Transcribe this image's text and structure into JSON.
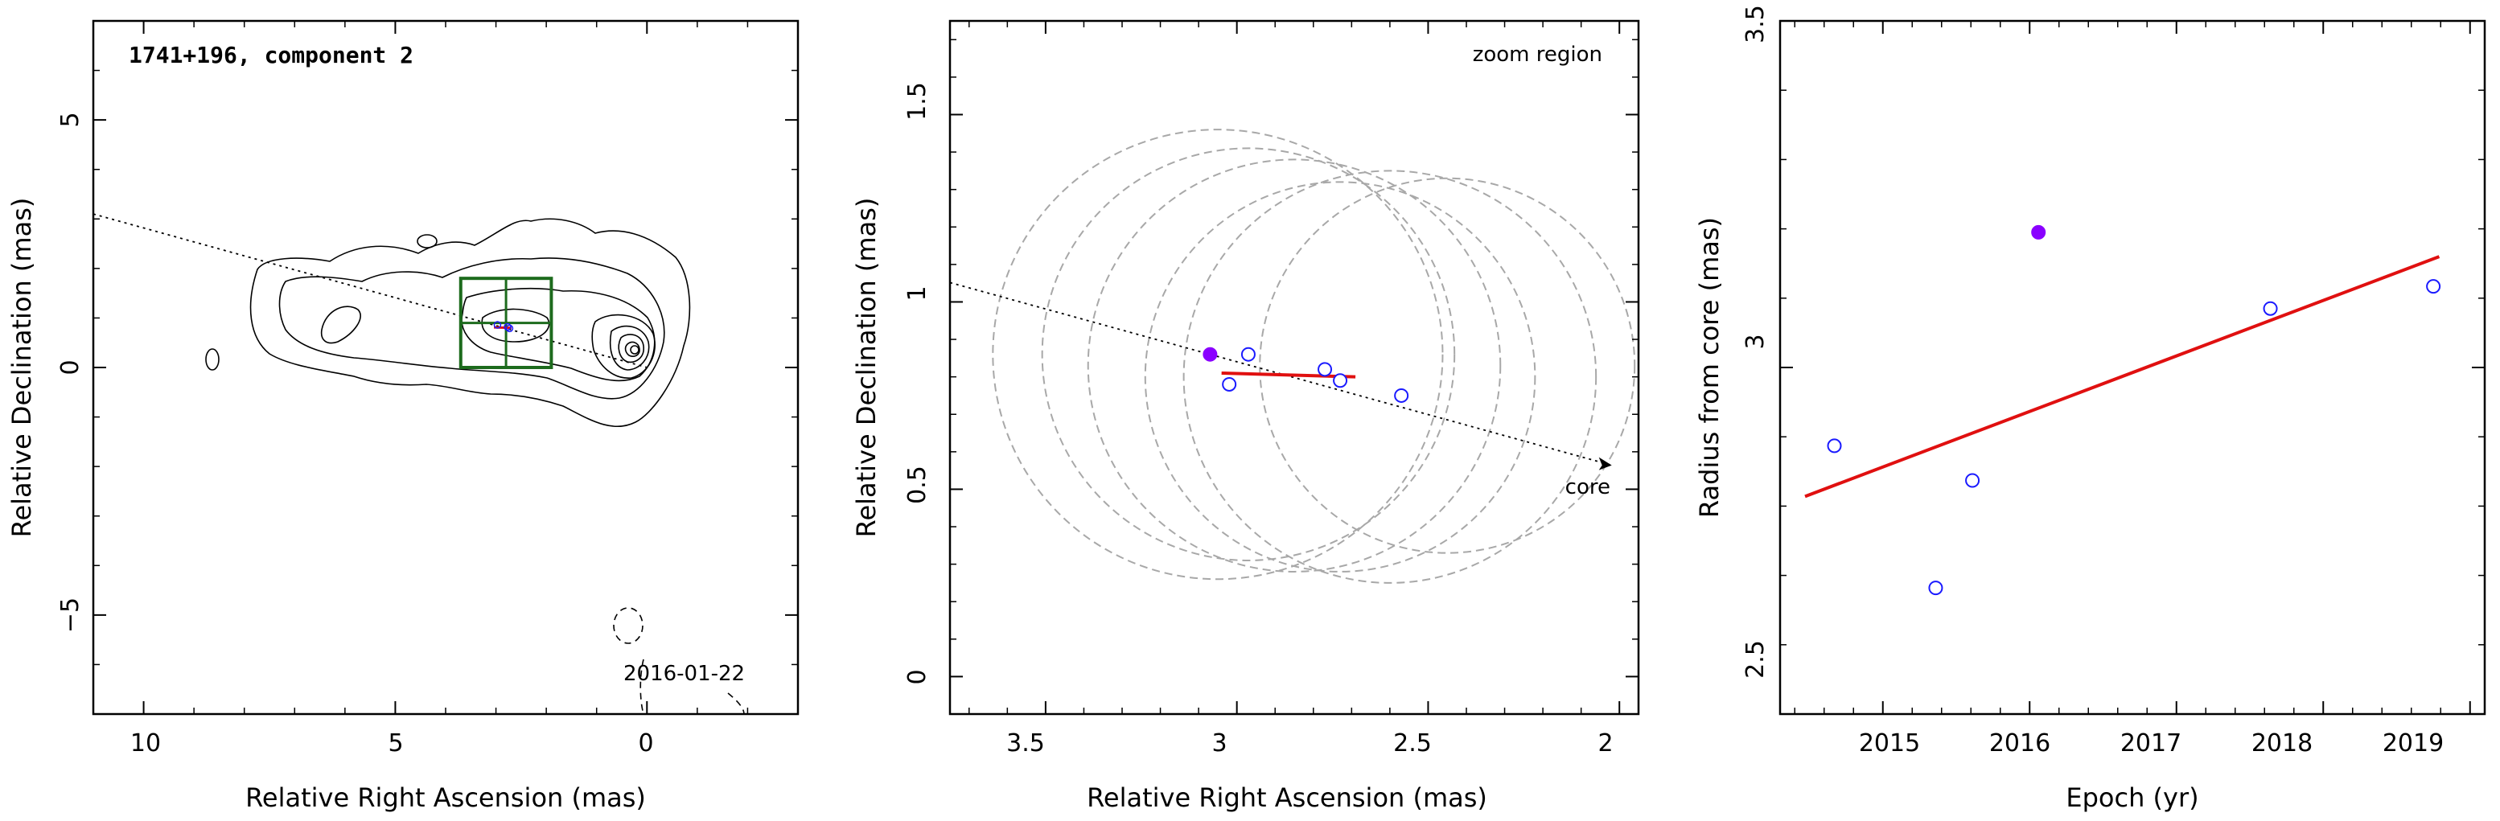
{
  "chart_data": [
    {
      "type": "contour",
      "title": "1741+196, component 2",
      "xlabel": "Relative Right Ascension (mas)",
      "ylabel": "Relative Declination (mas)",
      "xlim": [
        11,
        -3
      ],
      "ylim": [
        -7,
        7
      ],
      "xticks": [
        "10",
        "5",
        "0"
      ],
      "yticks": [
        "5",
        "0",
        "−5"
      ],
      "annotations": {
        "epoch": "2016-01-22"
      },
      "zoom_box": {
        "x_range": [
          3.7,
          1.9
        ],
        "y_range": [
          0.0,
          1.8
        ]
      },
      "axis_line": {
        "from": [
          11,
          3.1
        ],
        "to": [
          0,
          0
        ]
      },
      "colors": {
        "contours": "#000000",
        "box": "#1d6b1d",
        "fit": "#e01010"
      }
    },
    {
      "type": "scatter",
      "xlabel": "Relative Right Ascension (mas)",
      "ylabel": "Relative Declination (mas)",
      "xlim": [
        3.75,
        1.95
      ],
      "ylim": [
        -0.1,
        1.75
      ],
      "xticks": [
        "3.5",
        "3",
        "2.5",
        "2"
      ],
      "yticks": [
        "0",
        "0.5",
        "1",
        "1.5"
      ],
      "annotations": {
        "zoom": "zoom region",
        "core": "core"
      },
      "points_open": [
        {
          "x": 3.02,
          "y": 0.78
        },
        {
          "x": 2.97,
          "y": 0.86
        },
        {
          "x": 2.77,
          "y": 0.82
        },
        {
          "x": 2.73,
          "y": 0.79
        },
        {
          "x": 2.57,
          "y": 0.75
        }
      ],
      "point_filled": {
        "x": 3.07,
        "y": 0.86
      },
      "fit_line": [
        {
          "x": 3.04,
          "y": 0.81
        },
        {
          "x": 2.69,
          "y": 0.8
        }
      ],
      "beam_circles": [
        {
          "cx": 3.05,
          "cy": 0.86,
          "r": 0.6
        },
        {
          "cx": 2.97,
          "cy": 0.86,
          "r": 0.55
        },
        {
          "cx": 2.85,
          "cy": 0.83,
          "r": 0.55
        },
        {
          "cx": 2.73,
          "cy": 0.8,
          "r": 0.52
        },
        {
          "cx": 2.6,
          "cy": 0.8,
          "r": 0.55
        },
        {
          "cx": 2.45,
          "cy": 0.83,
          "r": 0.5
        }
      ],
      "colors": {
        "open": "#1a1aff",
        "filled": "#8a00ff",
        "fit": "#e01010",
        "circles": "#a8a8a8"
      }
    },
    {
      "type": "scatter",
      "xlabel": "Epoch (yr)",
      "ylabel": "Radius from core (mas)",
      "xlim": [
        2014.3,
        2019.1
      ],
      "ylim": [
        2.5,
        3.5
      ],
      "xticks": [
        "2015",
        "2016",
        "2017",
        "2018",
        "2019"
      ],
      "yticks": [
        "2.5",
        "3",
        "3.5"
      ],
      "points_open": [
        {
          "x": 2014.67,
          "y": 2.887
        },
        {
          "x": 2015.36,
          "y": 2.682
        },
        {
          "x": 2015.61,
          "y": 2.837
        },
        {
          "x": 2017.64,
          "y": 3.085
        },
        {
          "x": 2018.75,
          "y": 3.117
        }
      ],
      "point_filled": {
        "x": 2016.06,
        "y": 3.195
      },
      "fit_line": [
        {
          "x": 2014.47,
          "y": 2.814
        },
        {
          "x": 2018.79,
          "y": 3.16
        }
      ],
      "colors": {
        "open": "#1a1aff",
        "filled": "#8a00ff",
        "fit": "#e01010"
      }
    }
  ]
}
